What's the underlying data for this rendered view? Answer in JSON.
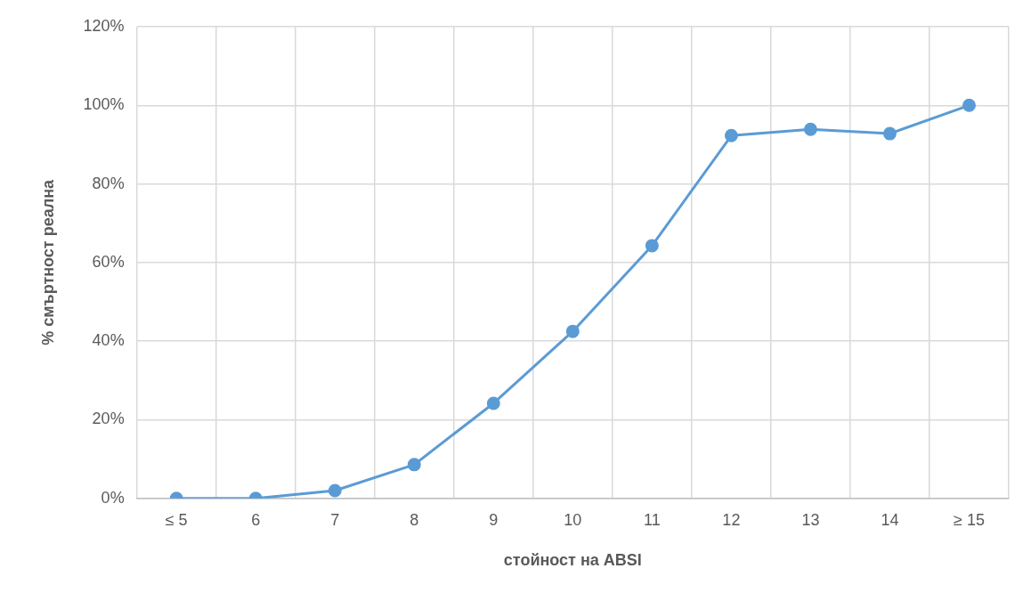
{
  "chart_data": {
    "type": "line",
    "xlabel": "стойност на ABSI",
    "ylabel": "% смъртност реална",
    "categories": [
      "≤ 5",
      "6",
      "7",
      "8",
      "9",
      "10",
      "11",
      "12",
      "13",
      "14",
      "≥ 15"
    ],
    "series": [
      {
        "color": "#5b9bd5",
        "values": [
          0,
          0,
          2,
          8.6,
          24.2,
          42.5,
          64.3,
          92.3,
          93.9,
          92.8,
          100
        ]
      }
    ],
    "ylim": [
      0,
      120
    ],
    "yticks": [
      {
        "value": 0,
        "label": "0%"
      },
      {
        "value": 20,
        "label": "20%"
      },
      {
        "value": 40,
        "label": "40%"
      },
      {
        "value": 60,
        "label": "60%"
      },
      {
        "value": 80,
        "label": "80%"
      },
      {
        "value": 100,
        "label": "100%"
      },
      {
        "value": 120,
        "label": "120%"
      }
    ],
    "grid": true,
    "marker": "circle",
    "line_style": "solid"
  }
}
